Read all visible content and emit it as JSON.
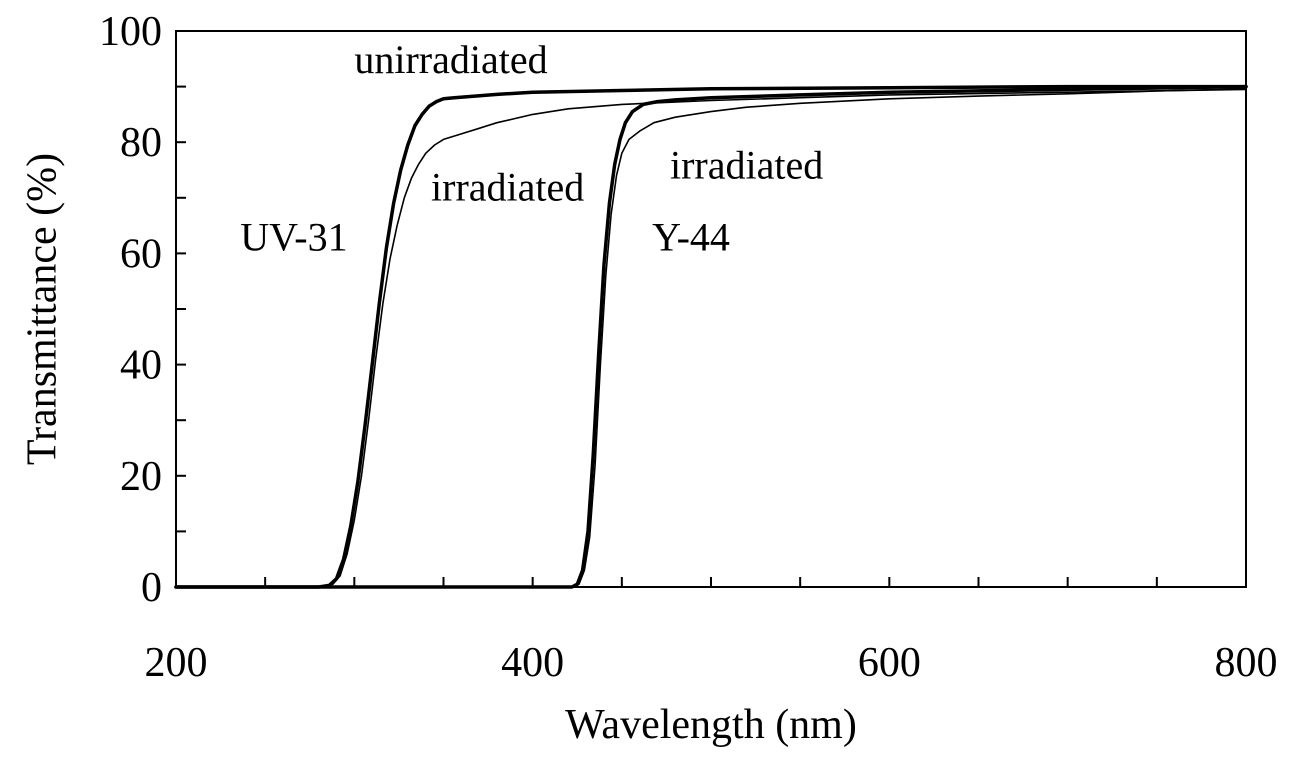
{
  "chart_data": {
    "type": "line",
    "xlabel": "Wavelength (nm)",
    "ylabel": "Transmittance (%)",
    "xlim": [
      200,
      800
    ],
    "ylim": [
      0,
      100
    ],
    "x_ticks": [
      200,
      400,
      600,
      800
    ],
    "y_ticks": [
      0,
      20,
      40,
      60,
      80,
      100
    ],
    "x_minor_step": 50,
    "y_minor_step": 10,
    "grid": false,
    "legend": "none",
    "series": [
      {
        "stroke": "#000000",
        "weight": "bold",
        "points": [
          [
            200,
            0
          ],
          [
            280,
            0
          ],
          [
            286,
            0.3
          ],
          [
            290,
            1.5
          ],
          [
            294,
            5
          ],
          [
            298,
            11
          ],
          [
            302,
            19
          ],
          [
            306,
            29
          ],
          [
            310,
            40
          ],
          [
            314,
            51
          ],
          [
            318,
            61
          ],
          [
            322,
            69
          ],
          [
            326,
            75
          ],
          [
            330,
            79.5
          ],
          [
            334,
            83
          ],
          [
            338,
            85
          ],
          [
            342,
            86.5
          ],
          [
            346,
            87.3
          ],
          [
            350,
            87.8
          ],
          [
            356,
            88
          ],
          [
            364,
            88.2
          ],
          [
            380,
            88.6
          ],
          [
            400,
            89
          ],
          [
            450,
            89.3
          ],
          [
            500,
            89.6
          ],
          [
            600,
            89.8
          ],
          [
            700,
            90
          ],
          [
            800,
            90
          ]
        ]
      },
      {
        "stroke": "#000000",
        "weight": "thin",
        "points": [
          [
            200,
            0
          ],
          [
            282,
            0
          ],
          [
            288,
            0.5
          ],
          [
            292,
            2
          ],
          [
            296,
            6
          ],
          [
            300,
            12
          ],
          [
            304,
            20
          ],
          [
            308,
            30
          ],
          [
            312,
            41
          ],
          [
            316,
            51
          ],
          [
            320,
            59
          ],
          [
            324,
            65
          ],
          [
            328,
            70
          ],
          [
            332,
            73.5
          ],
          [
            336,
            76
          ],
          [
            340,
            78
          ],
          [
            345,
            79.5
          ],
          [
            350,
            80.5
          ],
          [
            360,
            81.5
          ],
          [
            370,
            82.5
          ],
          [
            380,
            83.5
          ],
          [
            400,
            85
          ],
          [
            420,
            86
          ],
          [
            450,
            86.8
          ],
          [
            500,
            87.5
          ],
          [
            550,
            88
          ],
          [
            600,
            88.5
          ],
          [
            700,
            89
          ],
          [
            800,
            89.5
          ]
        ]
      },
      {
        "stroke": "#000000",
        "weight": "bold",
        "points": [
          [
            200,
            0
          ],
          [
            422,
            0
          ],
          [
            425,
            0.5
          ],
          [
            428,
            3
          ],
          [
            431,
            10
          ],
          [
            434,
            24
          ],
          [
            437,
            42
          ],
          [
            440,
            58
          ],
          [
            443,
            69
          ],
          [
            446,
            76
          ],
          [
            449,
            80.5
          ],
          [
            452,
            83.5
          ],
          [
            456,
            85.5
          ],
          [
            462,
            86.8
          ],
          [
            470,
            87.3
          ],
          [
            480,
            87.6
          ],
          [
            500,
            88
          ],
          [
            550,
            88.5
          ],
          [
            600,
            89
          ],
          [
            700,
            89.5
          ],
          [
            800,
            90
          ]
        ]
      },
      {
        "stroke": "#000000",
        "weight": "thin",
        "points": [
          [
            200,
            0
          ],
          [
            423,
            0
          ],
          [
            426,
            0.5
          ],
          [
            429,
            3
          ],
          [
            432,
            9
          ],
          [
            435,
            22
          ],
          [
            438,
            40
          ],
          [
            441,
            56
          ],
          [
            444,
            67
          ],
          [
            447,
            74
          ],
          [
            450,
            78
          ],
          [
            454,
            80.5
          ],
          [
            460,
            82
          ],
          [
            468,
            83.5
          ],
          [
            480,
            84.5
          ],
          [
            500,
            85.5
          ],
          [
            520,
            86.3
          ],
          [
            550,
            87
          ],
          [
            600,
            87.8
          ],
          [
            650,
            88.3
          ],
          [
            700,
            88.7
          ],
          [
            750,
            89.2
          ],
          [
            800,
            89.6
          ]
        ]
      }
    ],
    "annotations": [
      {
        "text": "unirradiated",
        "x": 300,
        "y": 95
      },
      {
        "text": "irradiated",
        "x": 343,
        "y": 72
      },
      {
        "text": "UV-31",
        "x": 236,
        "y": 63
      },
      {
        "text": "irradiated",
        "x": 477,
        "y": 76
      },
      {
        "text": "Y-44",
        "x": 467,
        "y": 63
      }
    ]
  }
}
